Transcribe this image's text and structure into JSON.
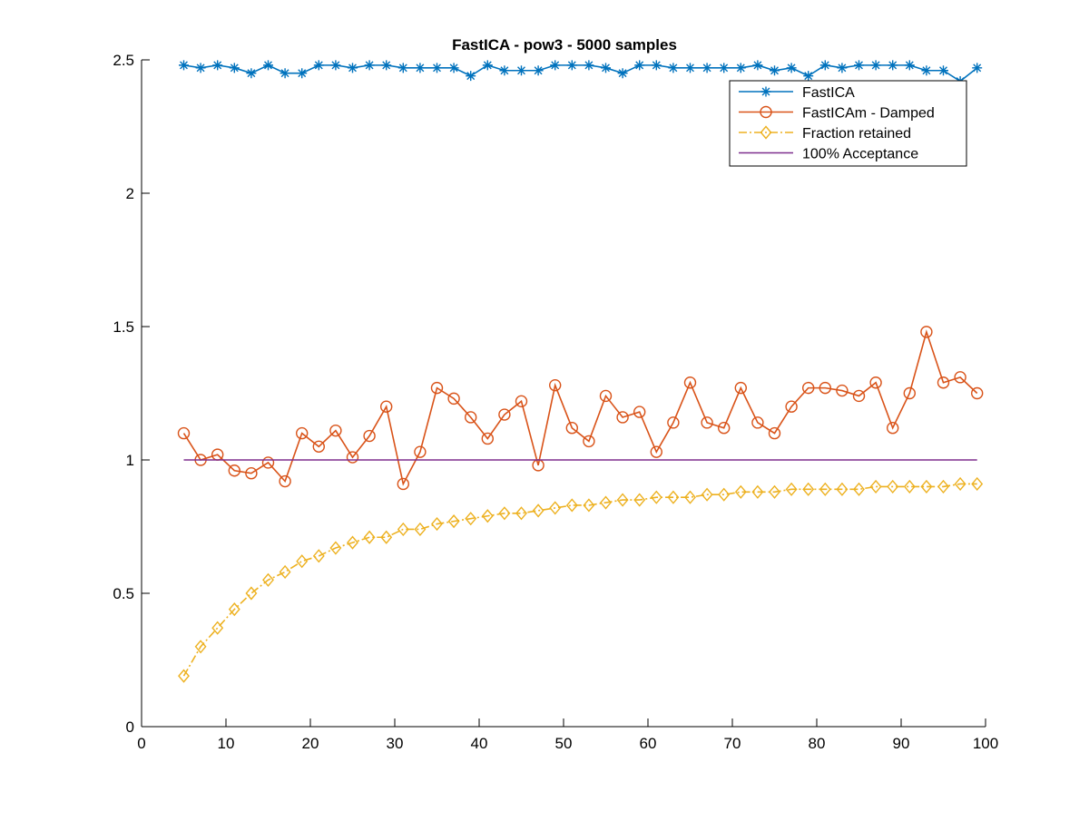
{
  "chart_data": {
    "type": "line",
    "title": "FastICA - pow3 - 5000 samples",
    "xlabel": "",
    "ylabel": "",
    "xlim": [
      0,
      100
    ],
    "ylim": [
      0,
      2.5
    ],
    "xticks": [
      0,
      10,
      20,
      30,
      40,
      50,
      60,
      70,
      80,
      90,
      100
    ],
    "yticks": [
      0,
      0.5,
      1,
      1.5,
      2,
      2.5
    ],
    "xtick_labels": [
      "0",
      "10",
      "20",
      "30",
      "40",
      "50",
      "60",
      "70",
      "80",
      "90",
      "100"
    ],
    "ytick_labels": [
      "0",
      "0.5",
      "1",
      "1.5",
      "2",
      "2.5"
    ],
    "grid": false,
    "legend_position": "top-right",
    "x": [
      5,
      7,
      9,
      11,
      13,
      15,
      17,
      19,
      21,
      23,
      25,
      27,
      29,
      31,
      33,
      35,
      37,
      39,
      41,
      43,
      45,
      47,
      49,
      51,
      53,
      55,
      57,
      59,
      61,
      63,
      65,
      67,
      69,
      71,
      73,
      75,
      77,
      79,
      81,
      83,
      85,
      87,
      89,
      91,
      93,
      95,
      97,
      99
    ],
    "series": [
      {
        "name": "FastICA",
        "color": "#0072BD",
        "marker": "star",
        "line": "solid",
        "values": [
          2.48,
          2.47,
          2.48,
          2.47,
          2.45,
          2.48,
          2.45,
          2.45,
          2.48,
          2.48,
          2.47,
          2.48,
          2.48,
          2.47,
          2.47,
          2.47,
          2.47,
          2.44,
          2.48,
          2.46,
          2.46,
          2.46,
          2.48,
          2.48,
          2.48,
          2.47,
          2.45,
          2.48,
          2.48,
          2.47,
          2.47,
          2.47,
          2.47,
          2.47,
          2.48,
          2.46,
          2.47,
          2.44,
          2.48,
          2.47,
          2.48,
          2.48,
          2.48,
          2.48,
          2.46,
          2.46,
          2.42,
          2.47
        ]
      },
      {
        "name": "FastICAm - Damped",
        "color": "#D95319",
        "marker": "circle",
        "line": "solid",
        "values": [
          1.1,
          1.0,
          1.02,
          0.96,
          0.95,
          0.99,
          0.92,
          1.1,
          1.05,
          1.11,
          1.01,
          1.09,
          1.2,
          0.91,
          1.03,
          1.27,
          1.23,
          1.16,
          1.08,
          1.17,
          1.22,
          0.98,
          1.28,
          1.12,
          1.07,
          1.24,
          1.16,
          1.18,
          1.03,
          1.14,
          1.29,
          1.14,
          1.12,
          1.27,
          1.14,
          1.1,
          1.2,
          1.27,
          1.27,
          1.26,
          1.24,
          1.29,
          1.12,
          1.25,
          1.48,
          1.29,
          1.31,
          1.25
        ]
      },
      {
        "name": "Fraction retained",
        "color": "#EDB120",
        "marker": "diamond",
        "line": "dashdot",
        "values": [
          0.19,
          0.3,
          0.37,
          0.44,
          0.5,
          0.55,
          0.58,
          0.62,
          0.64,
          0.67,
          0.69,
          0.71,
          0.71,
          0.74,
          0.74,
          0.76,
          0.77,
          0.78,
          0.79,
          0.8,
          0.8,
          0.81,
          0.82,
          0.83,
          0.83,
          0.84,
          0.85,
          0.85,
          0.86,
          0.86,
          0.86,
          0.87,
          0.87,
          0.88,
          0.88,
          0.88,
          0.89,
          0.89,
          0.89,
          0.89,
          0.89,
          0.9,
          0.9,
          0.9,
          0.9,
          0.9,
          0.91,
          0.91
        ]
      },
      {
        "name": "100% Acceptance",
        "color": "#7E2F8E",
        "marker": "none",
        "line": "solid",
        "values": [
          1,
          1,
          1,
          1,
          1,
          1,
          1,
          1,
          1,
          1,
          1,
          1,
          1,
          1,
          1,
          1,
          1,
          1,
          1,
          1,
          1,
          1,
          1,
          1,
          1,
          1,
          1,
          1,
          1,
          1,
          1,
          1,
          1,
          1,
          1,
          1,
          1,
          1,
          1,
          1,
          1,
          1,
          1,
          1,
          1,
          1,
          1,
          1
        ]
      }
    ]
  }
}
